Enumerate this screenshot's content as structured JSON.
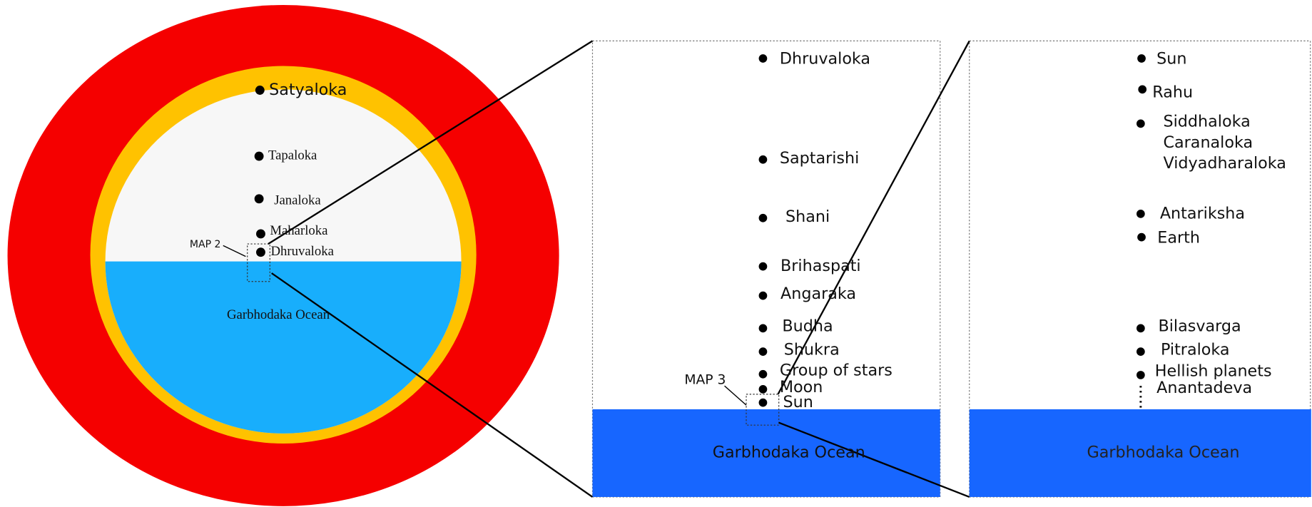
{
  "map1": {
    "labels": [
      "Satyaloka",
      "Tapaloka",
      "Janaloka",
      "Maharloka",
      "Dhruvaloka"
    ],
    "ocean": "Garbhodaka Ocean",
    "callout": "MAP 2"
  },
  "map2": {
    "labels": [
      "Dhruvaloka",
      "Saptarishi",
      "Shani",
      "Brihaspati",
      "Angaraka",
      "Budha",
      "Shukra",
      "Group of stars",
      "Moon",
      "Sun"
    ],
    "ocean": "Garbhodaka Ocean",
    "callout": "MAP 3"
  },
  "map3": {
    "labels": [
      "Sun",
      "Rahu",
      "Siddhaloka",
      "Caranaloka",
      "Vidyadharaloka",
      "Antariksha",
      "Earth",
      "Bilasvarga",
      "Pitraloka",
      "Hellish planets",
      "Anantadeva"
    ],
    "ocean": "Garbhodaka Ocean"
  }
}
